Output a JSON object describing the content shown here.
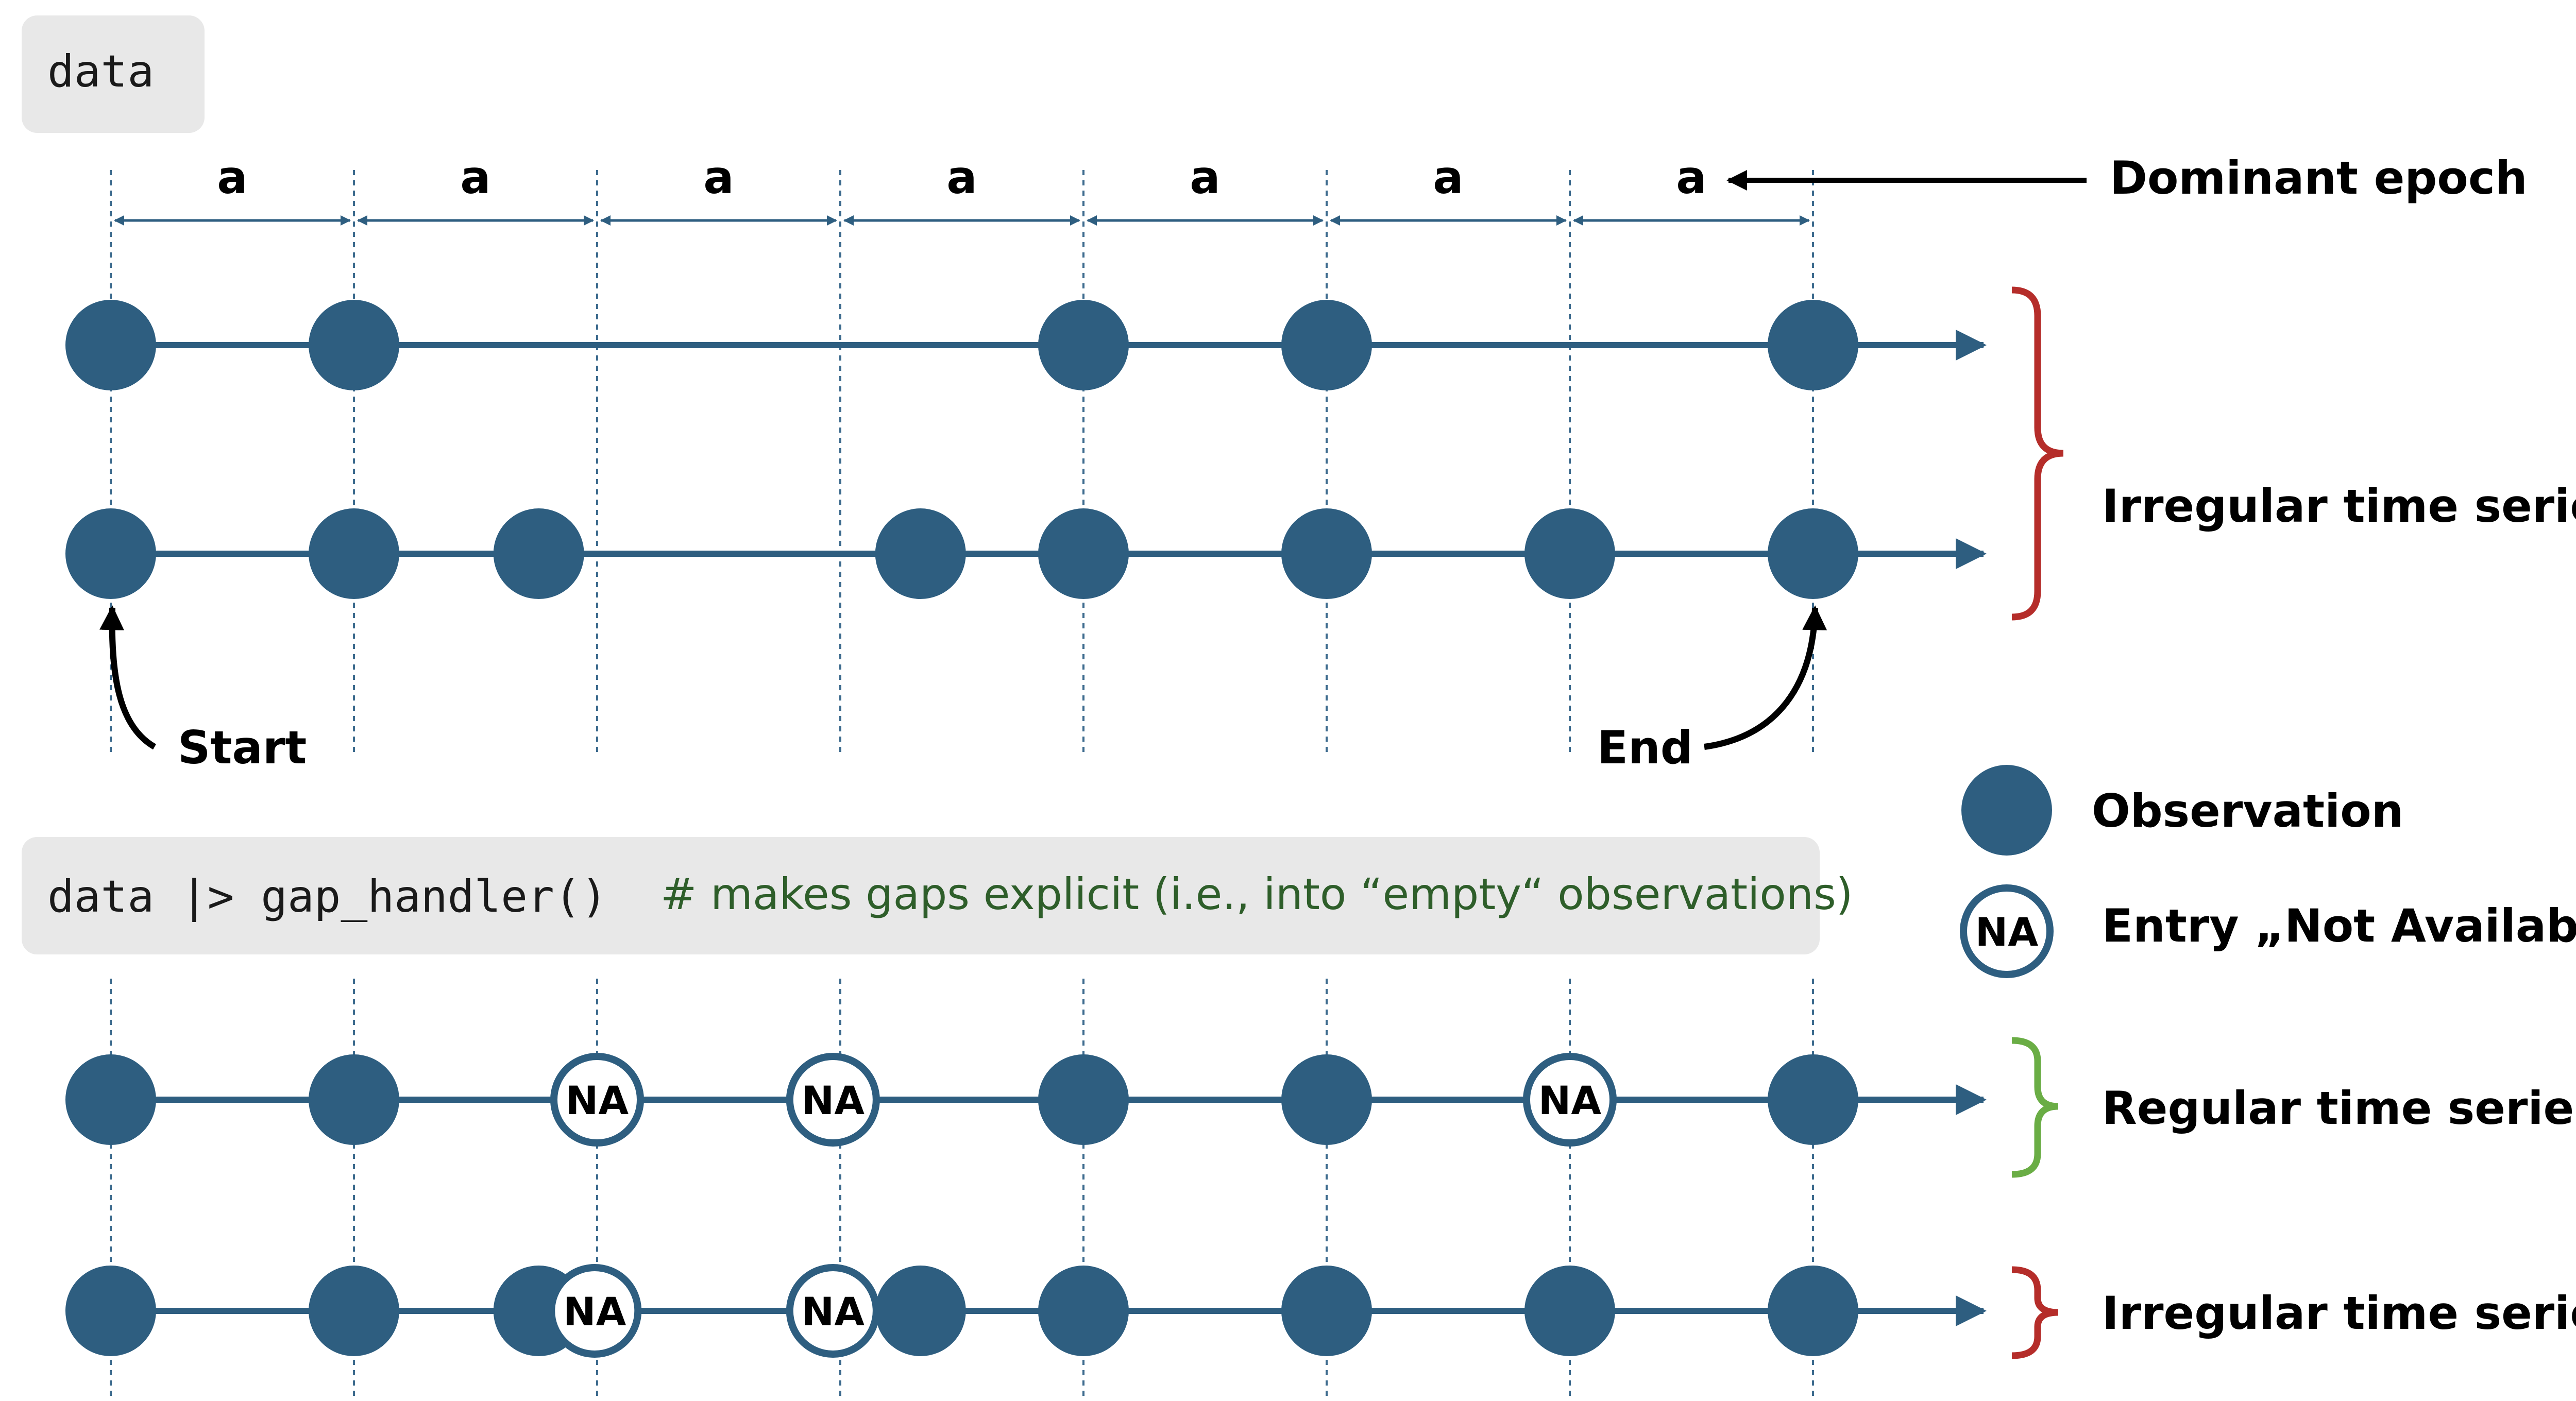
{
  "colors": {
    "primary": "#2e5e80",
    "grid": "#3d6b8e",
    "code_box": "#e8e8e8",
    "comment": "#2e5e2a",
    "brace_irregular": "#b52d2a",
    "brace_regular": "#6aad45"
  },
  "code_top": "data",
  "code_bottom": {
    "code": "data |> gap_handler()",
    "comment": "# makes gaps explicit (i.e., into “empty“ observations)"
  },
  "epoch": {
    "labels": [
      "a",
      "a",
      "a",
      "a",
      "a",
      "a",
      "a"
    ],
    "annotation": "Dominant epoch"
  },
  "markers": {
    "start": "Start",
    "end": "End"
  },
  "legend": {
    "observation": "Observation",
    "na_symbol": "NA",
    "na_label": "Entry „Not Available“"
  },
  "series": [
    {
      "label": "Irregular time series",
      "points": [
        {
          "t": 0,
          "kind": "obs"
        },
        {
          "t": 1,
          "kind": "obs"
        },
        {
          "t": 4,
          "kind": "obs"
        },
        {
          "t": 5,
          "kind": "obs"
        },
        {
          "t": 7,
          "kind": "obs"
        }
      ]
    },
    {
      "label": "",
      "points": [
        {
          "t": 0,
          "kind": "obs"
        },
        {
          "t": 1,
          "kind": "obs"
        },
        {
          "t": 1.76,
          "kind": "obs"
        },
        {
          "t": 3.33,
          "kind": "obs"
        },
        {
          "t": 4,
          "kind": "obs"
        },
        {
          "t": 5,
          "kind": "obs"
        },
        {
          "t": 6,
          "kind": "obs"
        },
        {
          "t": 7,
          "kind": "obs"
        }
      ]
    },
    {
      "label": "Regular time series",
      "points": [
        {
          "t": 0,
          "kind": "obs"
        },
        {
          "t": 1,
          "kind": "obs"
        },
        {
          "t": 2,
          "kind": "na"
        },
        {
          "t": 2.97,
          "kind": "na"
        },
        {
          "t": 4,
          "kind": "obs"
        },
        {
          "t": 5,
          "kind": "obs"
        },
        {
          "t": 6,
          "kind": "na"
        },
        {
          "t": 7,
          "kind": "obs"
        }
      ]
    },
    {
      "label": "Irregular time series",
      "points": [
        {
          "t": 0,
          "kind": "obs"
        },
        {
          "t": 1,
          "kind": "obs"
        },
        {
          "t": 1.76,
          "kind": "obs"
        },
        {
          "t": 1.99,
          "kind": "na"
        },
        {
          "t": 2.97,
          "kind": "na"
        },
        {
          "t": 3.33,
          "kind": "obs"
        },
        {
          "t": 4,
          "kind": "obs"
        },
        {
          "t": 5,
          "kind": "obs"
        },
        {
          "t": 6,
          "kind": "obs"
        },
        {
          "t": 7,
          "kind": "obs"
        }
      ]
    }
  ]
}
